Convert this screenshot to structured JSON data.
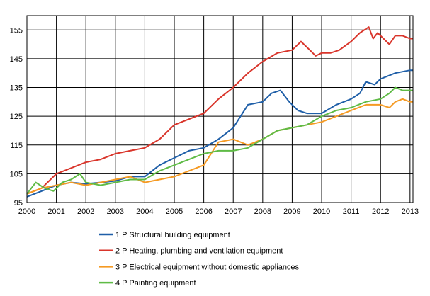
{
  "chart_data": {
    "type": "line",
    "title": "",
    "xlabel": "",
    "ylabel": "",
    "xlim": [
      2000.0,
      2013.1
    ],
    "ylim": [
      95,
      160
    ],
    "x_ticks": [
      2000,
      2001,
      2002,
      2003,
      2004,
      2005,
      2006,
      2007,
      2008,
      2009,
      2010,
      2011,
      2012,
      2013
    ],
    "y_ticks": [
      95,
      105,
      115,
      125,
      135,
      145,
      155
    ],
    "grid": true,
    "legend_position": "bottom",
    "series": [
      {
        "name": "1 P Structural building equipment",
        "color": "#1f5fa8",
        "x": [
          2000.0,
          2000.5,
          2001.0,
          2001.5,
          2002.0,
          2002.5,
          2003.0,
          2003.5,
          2004.0,
          2004.5,
          2005.0,
          2005.5,
          2006.0,
          2006.5,
          2007.0,
          2007.5,
          2008.0,
          2008.3,
          2008.6,
          2008.9,
          2009.2,
          2009.5,
          2009.8,
          2010.0,
          2010.5,
          2011.0,
          2011.3,
          2011.5,
          2011.8,
          2012.0,
          2012.5,
          2013.0,
          2013.1
        ],
        "y": [
          97,
          99,
          101,
          102,
          101.5,
          102,
          102.5,
          104,
          104,
          108,
          110.5,
          113,
          114,
          117,
          121,
          129,
          130,
          133,
          134,
          130,
          127,
          126,
          126,
          126,
          129,
          131,
          133,
          137,
          136,
          138,
          140,
          141,
          141
        ]
      },
      {
        "name": "2 P Heating, plumbing and ventilation equipment",
        "color": "#d9352b",
        "x": [
          2000.0,
          2000.5,
          2001.0,
          2001.5,
          2002.0,
          2002.5,
          2003.0,
          2003.5,
          2004.0,
          2004.5,
          2005.0,
          2005.5,
          2006.0,
          2006.5,
          2007.0,
          2007.5,
          2008.0,
          2008.5,
          2009.0,
          2009.3,
          2009.6,
          2009.8,
          2010.0,
          2010.3,
          2010.6,
          2011.0,
          2011.3,
          2011.6,
          2011.75,
          2011.9,
          2012.0,
          2012.3,
          2012.5,
          2012.75,
          2013.0,
          2013.1
        ],
        "y": [
          98,
          100,
          105,
          107,
          109,
          110,
          112,
          113,
          114,
          117,
          122,
          124,
          126,
          131,
          135,
          140,
          144,
          147,
          148,
          151,
          148,
          146,
          147,
          147,
          148,
          151,
          154,
          156,
          152,
          154,
          153,
          150,
          153,
          153,
          152,
          152
        ]
      },
      {
        "name": "3 P Electrical equipment without domestic appliances",
        "color": "#f59a23",
        "x": [
          2000.0,
          2000.5,
          2001.0,
          2001.5,
          2002.0,
          2002.5,
          2003.0,
          2003.5,
          2004.0,
          2004.5,
          2005.0,
          2005.5,
          2006.0,
          2006.5,
          2007.0,
          2007.5,
          2008.0,
          2008.5,
          2009.0,
          2009.5,
          2010.0,
          2010.5,
          2011.0,
          2011.5,
          2012.0,
          2012.3,
          2012.5,
          2012.75,
          2013.0,
          2013.1
        ],
        "y": [
          98,
          100,
          101,
          102,
          101,
          102,
          103,
          104,
          102,
          103,
          104,
          106,
          108,
          116,
          117,
          115,
          117,
          120,
          121,
          122,
          123,
          125,
          127,
          129,
          129,
          128,
          130,
          131,
          130,
          130
        ]
      },
      {
        "name": "4 P Painting equipment",
        "color": "#5fbb46",
        "x": [
          2000.0,
          2000.3,
          2000.6,
          2000.9,
          2001.2,
          2001.5,
          2001.8,
          2002.0,
          2002.5,
          2003.0,
          2003.5,
          2004.0,
          2004.5,
          2005.0,
          2005.5,
          2006.0,
          2006.5,
          2007.0,
          2007.5,
          2008.0,
          2008.5,
          2009.0,
          2009.5,
          2010.0,
          2010.5,
          2011.0,
          2011.5,
          2012.0,
          2012.3,
          2012.5,
          2012.75,
          2013.0,
          2013.1
        ],
        "y": [
          98,
          102,
          100,
          99,
          102,
          103,
          105,
          102,
          101,
          102,
          103,
          103,
          106,
          108,
          110,
          112,
          113,
          113,
          114,
          117,
          120,
          121,
          122,
          125,
          127,
          128,
          130,
          131,
          133,
          135,
          134,
          134,
          134
        ]
      }
    ]
  }
}
